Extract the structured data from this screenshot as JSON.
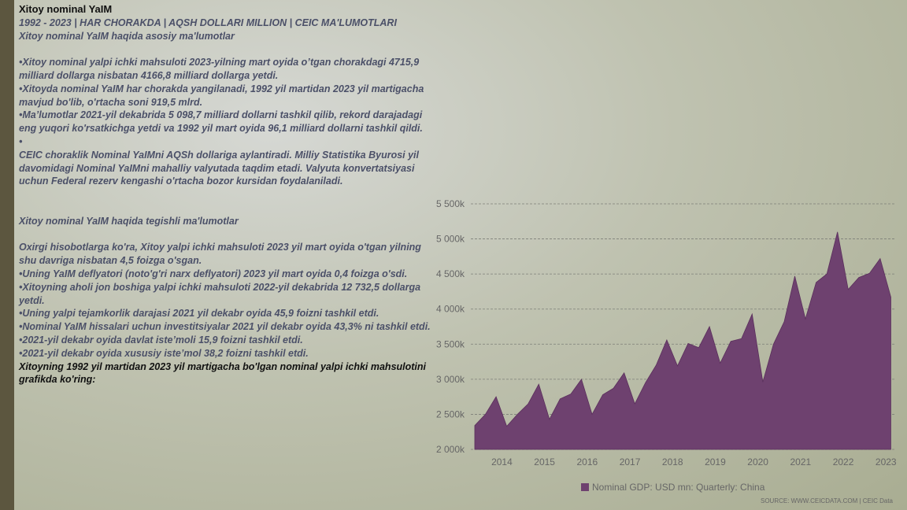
{
  "slide": {
    "title": "Xitoy nominal YaIM",
    "subtitle": "1992 - 2023 | HAR CHORAKDA | AQSH DOLLARI MILLION | CEIC MA'LUMOTLARI",
    "paragraphs": [
      "Xitoy nominal YaIM haqida asosiy ma'lumotlar",
      "•Xitoy nominal yalpi ichki mahsuloti 2023-yilning mart oyida o’tgan chorakdagi 4715,9 milliard dollarga nisbatan 4166,8 milliard dollarga yetdi.",
      "•Xitoyda nominal YaIM har chorakda yangilanadi, 1992 yil martidan 2023 yil martigacha mavjud bo'lib, o'rtacha soni 919,5 mlrd.",
      "•Ma’lumotlar 2021-yil dekabrida 5 098,7 milliard dollarni tashkil qilib, rekord darajadagi eng yuqori ko'rsatkichga yetdi va 1992 yil mart oyida 96,1 milliard dollarni tashkil qildi.",
      "•",
      "CEIC choraklik Nominal YaIMni AQSh dollariga aylantiradi. Milliy Statistika Byurosi yil davomidagi Nominal YaIMni mahalliy valyutada taqdim etadi. Valyuta konvertatsiyasi uchun Federal rezerv kengashi o'rtacha bozor kursidan foydalaniladi.",
      "Xitoy nominal YaIM haqida tegishli ma'lumotlar",
      "Oxirgi hisobotlarga ko'ra, Xitoy yalpi ichki mahsuloti 2023 yil mart oyida o'tgan yilning shu davriga nisbatan 4,5 foizga o'sgan.",
      "•Uning YaIM deflyatori (noto'g'ri narx deflyatori) 2023 yil mart oyida 0,4 foizga o'sdi.",
      "•Xitoyning aholi jon boshiga yalpi ichki mahsuloti 2022-yil dekabrida 12 732,5 dollarga yetdi.",
      "•Uning yalpi tejamkorlik darajasi 2021 yil dekabr oyida 45,9 foizni tashkil etdi.",
      "•Nominal YaIM hissalari uchun investitsiyalar 2021 yil dekabr oyida 43,3% ni tashkil etdi.",
      "•2021-yil dekabr oyida davlat iste’moli 15,9 foizni tashkil etdi.",
      "•2021-yil dekabr oyida xususiy iste’mol 38,2 foizni tashkil etdi."
    ],
    "closing": "Xitoyning 1992 yil martidan 2023 yil martigacha bo'lgan nominal yalpi ichki mahsulotini grafikda ko'ring:"
  },
  "chart_data": {
    "type": "area",
    "categories": [
      null,
      null,
      "2014",
      null,
      null,
      null,
      "2015",
      null,
      null,
      null,
      "2016",
      null,
      null,
      null,
      "2017",
      null,
      null,
      null,
      "2018",
      null,
      null,
      null,
      "2019",
      null,
      null,
      null,
      "2020",
      null,
      null,
      null,
      "2021",
      null,
      null,
      null,
      "2022",
      null,
      null,
      null,
      "2023",
      null
    ],
    "series": [
      {
        "name": "Nominal GDP: USD mn: Quarterly: China",
        "color": "#6e416f",
        "values": [
          2340000,
          2500000,
          2750000,
          2330000,
          2500000,
          2650000,
          2930000,
          2430000,
          2720000,
          2790000,
          3000000,
          2500000,
          2780000,
          2870000,
          3090000,
          2650000,
          2950000,
          3200000,
          3560000,
          3190000,
          3510000,
          3450000,
          3750000,
          3230000,
          3540000,
          3580000,
          3930000,
          2960000,
          3500000,
          3820000,
          4470000,
          3860000,
          4380000,
          4500000,
          5100000,
          4280000,
          4450000,
          4510000,
          4720000,
          4170000
        ]
      }
    ],
    "ylim": [
      2000000,
      5500000
    ],
    "yticks": [
      {
        "value": 2000000,
        "label": "2 000k"
      },
      {
        "value": 2500000,
        "label": "2 500k"
      },
      {
        "value": 3000000,
        "label": "3 000k"
      },
      {
        "value": 3500000,
        "label": "3 500k"
      },
      {
        "value": 4000000,
        "label": "4 000k"
      },
      {
        "value": 4500000,
        "label": "4 500k"
      },
      {
        "value": 5000000,
        "label": "5 000k"
      },
      {
        "value": 5500000,
        "label": "5 500k"
      }
    ],
    "grid": true,
    "source": "SOURCE: WWW.CEICDATA.COM | CEIC Data"
  }
}
